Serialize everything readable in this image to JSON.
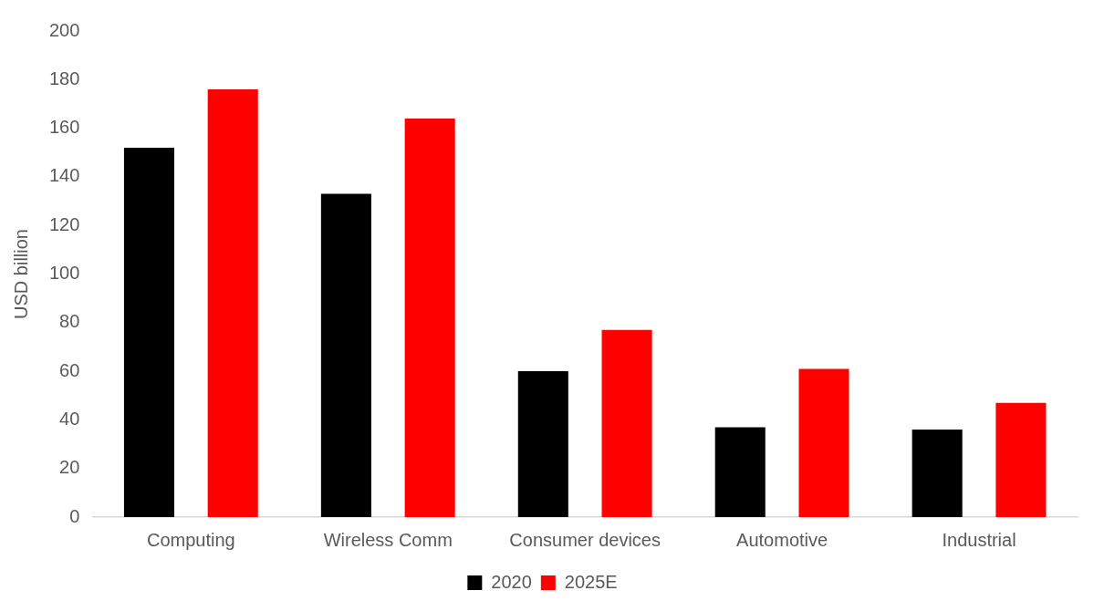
{
  "chart_data": {
    "type": "bar",
    "ylabel": "USD billion",
    "categories": [
      "Computing",
      "Wireless Comm",
      "Consumer devices",
      "Automotive",
      "Industrial"
    ],
    "series": [
      {
        "name": "2020",
        "color": "#000000",
        "values": [
          152,
          133,
          60,
          37,
          36
        ]
      },
      {
        "name": "2025E",
        "color": "#ff0000",
        "values": [
          176,
          164,
          77,
          61,
          47
        ]
      }
    ],
    "ylim": [
      0,
      200
    ],
    "yticks": [
      0,
      20,
      40,
      60,
      80,
      100,
      120,
      140,
      160,
      180,
      200
    ],
    "grid": false,
    "legend": "bottom"
  }
}
